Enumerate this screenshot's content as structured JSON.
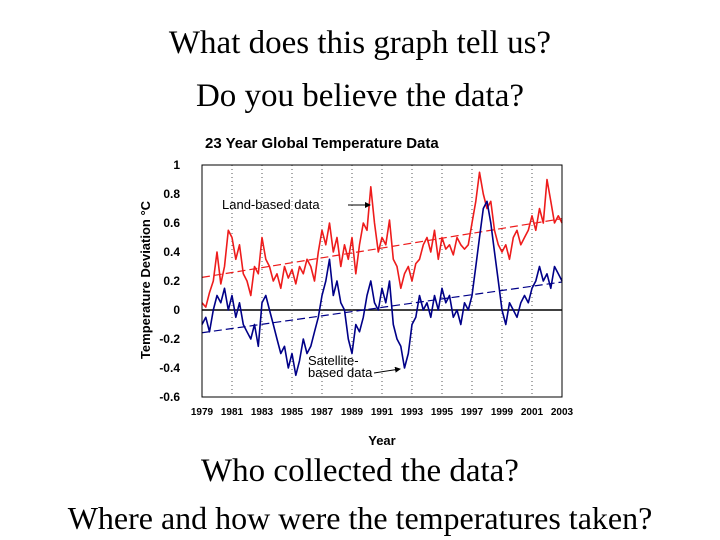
{
  "slide": {
    "question_1": "What does this graph tell us?",
    "question_2": "Do you believe the data?",
    "question_3": "Who collected the data?",
    "question_4": "Where and how were the temperatures taken?"
  },
  "chart_data": {
    "type": "line",
    "title": "23 Year Global Temperature Data",
    "xlabel": "Year",
    "ylabel": "Temperature Deviation °C",
    "xlim": [
      1979,
      2003
    ],
    "ylim": [
      -0.6,
      1
    ],
    "x_ticks": [
      "1979",
      "1981",
      "1983",
      "1985",
      "1987",
      "1989",
      "1991",
      "1993",
      "1995",
      "1997",
      "1999",
      "2001",
      "2003"
    ],
    "y_ticks": [
      "1",
      "0.8",
      "0.6",
      "0.4",
      "0.2",
      "0",
      "-0.2",
      "-0.4",
      "-0.6"
    ],
    "grid": "vertical dotted",
    "series": [
      {
        "name": "Land-based data",
        "color": "#ee1c1c",
        "x": [
          1979.0,
          1979.25,
          1979.5,
          1979.75,
          1980.0,
          1980.25,
          1980.5,
          1980.75,
          1981.0,
          1981.25,
          1981.5,
          1981.75,
          1982.0,
          1982.25,
          1982.5,
          1982.75,
          1983.0,
          1983.25,
          1983.5,
          1983.75,
          1984.0,
          1984.25,
          1984.5,
          1984.75,
          1985.0,
          1985.25,
          1985.5,
          1985.75,
          1986.0,
          1986.25,
          1986.5,
          1986.75,
          1987.0,
          1987.25,
          1987.5,
          1987.75,
          1988.0,
          1988.25,
          1988.5,
          1988.75,
          1989.0,
          1989.25,
          1989.5,
          1989.75,
          1990.0,
          1990.25,
          1990.5,
          1990.75,
          1991.0,
          1991.25,
          1991.5,
          1991.75,
          1992.0,
          1992.25,
          1992.5,
          1992.75,
          1993.0,
          1993.25,
          1993.5,
          1993.75,
          1994.0,
          1994.25,
          1994.5,
          1994.75,
          1995.0,
          1995.25,
          1995.5,
          1995.75,
          1996.0,
          1996.25,
          1996.5,
          1996.75,
          1997.0,
          1997.25,
          1997.5,
          1997.75,
          1998.0,
          1998.25,
          1998.5,
          1998.75,
          1999.0,
          1999.25,
          1999.5,
          1999.75,
          2000.0,
          2000.25,
          2000.5,
          2000.75,
          2001.0,
          2001.25,
          2001.5,
          2001.75,
          2002.0,
          2002.25,
          2002.5,
          2002.75,
          2003.0
        ],
        "values": [
          0.05,
          0.02,
          0.12,
          0.2,
          0.4,
          0.18,
          0.3,
          0.55,
          0.5,
          0.35,
          0.45,
          0.25,
          0.2,
          0.1,
          0.3,
          0.25,
          0.5,
          0.35,
          0.3,
          0.2,
          0.25,
          0.15,
          0.3,
          0.22,
          0.28,
          0.18,
          0.3,
          0.25,
          0.35,
          0.3,
          0.2,
          0.4,
          0.55,
          0.45,
          0.6,
          0.4,
          0.5,
          0.3,
          0.45,
          0.35,
          0.5,
          0.25,
          0.45,
          0.6,
          0.55,
          0.85,
          0.6,
          0.4,
          0.5,
          0.45,
          0.62,
          0.35,
          0.3,
          0.15,
          0.25,
          0.3,
          0.2,
          0.32,
          0.35,
          0.45,
          0.5,
          0.4,
          0.55,
          0.35,
          0.5,
          0.42,
          0.45,
          0.38,
          0.5,
          0.45,
          0.42,
          0.45,
          0.6,
          0.75,
          0.95,
          0.8,
          0.7,
          0.75,
          0.55,
          0.45,
          0.4,
          0.45,
          0.35,
          0.5,
          0.55,
          0.45,
          0.5,
          0.55,
          0.65,
          0.55,
          0.7,
          0.6,
          0.9,
          0.75,
          0.6,
          0.65,
          0.6
        ]
      },
      {
        "name": "Satellite-based data",
        "color": "#000088",
        "x": [
          1979.0,
          1979.25,
          1979.5,
          1979.75,
          1980.0,
          1980.25,
          1980.5,
          1980.75,
          1981.0,
          1981.25,
          1981.5,
          1981.75,
          1982.0,
          1982.25,
          1982.5,
          1982.75,
          1983.0,
          1983.25,
          1983.5,
          1983.75,
          1984.0,
          1984.25,
          1984.5,
          1984.75,
          1985.0,
          1985.25,
          1985.5,
          1985.75,
          1986.0,
          1986.25,
          1986.5,
          1986.75,
          1987.0,
          1987.25,
          1987.5,
          1987.75,
          1988.0,
          1988.25,
          1988.5,
          1988.75,
          1989.0,
          1989.25,
          1989.5,
          1989.75,
          1990.0,
          1990.25,
          1990.5,
          1990.75,
          1991.0,
          1991.25,
          1991.5,
          1991.75,
          1992.0,
          1992.25,
          1992.5,
          1992.75,
          1993.0,
          1993.25,
          1993.5,
          1993.75,
          1994.0,
          1994.25,
          1994.5,
          1994.75,
          1995.0,
          1995.25,
          1995.5,
          1995.75,
          1996.0,
          1996.25,
          1996.5,
          1996.75,
          1997.0,
          1997.25,
          1997.5,
          1997.75,
          1998.0,
          1998.25,
          1998.5,
          1998.75,
          1999.0,
          1999.25,
          1999.5,
          1999.75,
          2000.0,
          2000.25,
          2000.5,
          2000.75,
          2001.0,
          2001.25,
          2001.5,
          2001.75,
          2002.0,
          2002.25,
          2002.5,
          2002.75,
          2003.0
        ],
        "values": [
          -0.1,
          -0.05,
          -0.15,
          0.0,
          0.1,
          0.05,
          0.15,
          0.0,
          0.1,
          -0.05,
          0.05,
          -0.1,
          -0.15,
          -0.2,
          -0.1,
          -0.25,
          0.05,
          0.1,
          0.0,
          -0.1,
          -0.2,
          -0.3,
          -0.25,
          -0.4,
          -0.3,
          -0.45,
          -0.35,
          -0.2,
          -0.3,
          -0.25,
          -0.15,
          -0.05,
          0.1,
          0.2,
          0.35,
          0.1,
          0.2,
          0.05,
          0.0,
          -0.2,
          -0.3,
          -0.1,
          -0.15,
          -0.05,
          0.1,
          0.2,
          0.05,
          0.0,
          0.15,
          0.05,
          0.2,
          -0.1,
          -0.2,
          -0.25,
          -0.4,
          -0.3,
          -0.1,
          -0.05,
          0.1,
          0.0,
          0.05,
          -0.05,
          0.1,
          0.0,
          0.15,
          0.05,
          0.1,
          -0.05,
          0.0,
          -0.1,
          0.05,
          0.0,
          0.1,
          0.3,
          0.5,
          0.7,
          0.75,
          0.6,
          0.4,
          0.2,
          0.0,
          -0.1,
          0.05,
          0.0,
          -0.05,
          0.05,
          0.1,
          0.05,
          0.15,
          0.2,
          0.3,
          0.2,
          0.25,
          0.15,
          0.3,
          0.25,
          0.2
        ]
      }
    ],
    "annotations": [
      {
        "text": "Land-based data",
        "arrow": true
      },
      {
        "text_lines": [
          "Satellite-",
          "based data"
        ],
        "arrow": true
      }
    ]
  }
}
